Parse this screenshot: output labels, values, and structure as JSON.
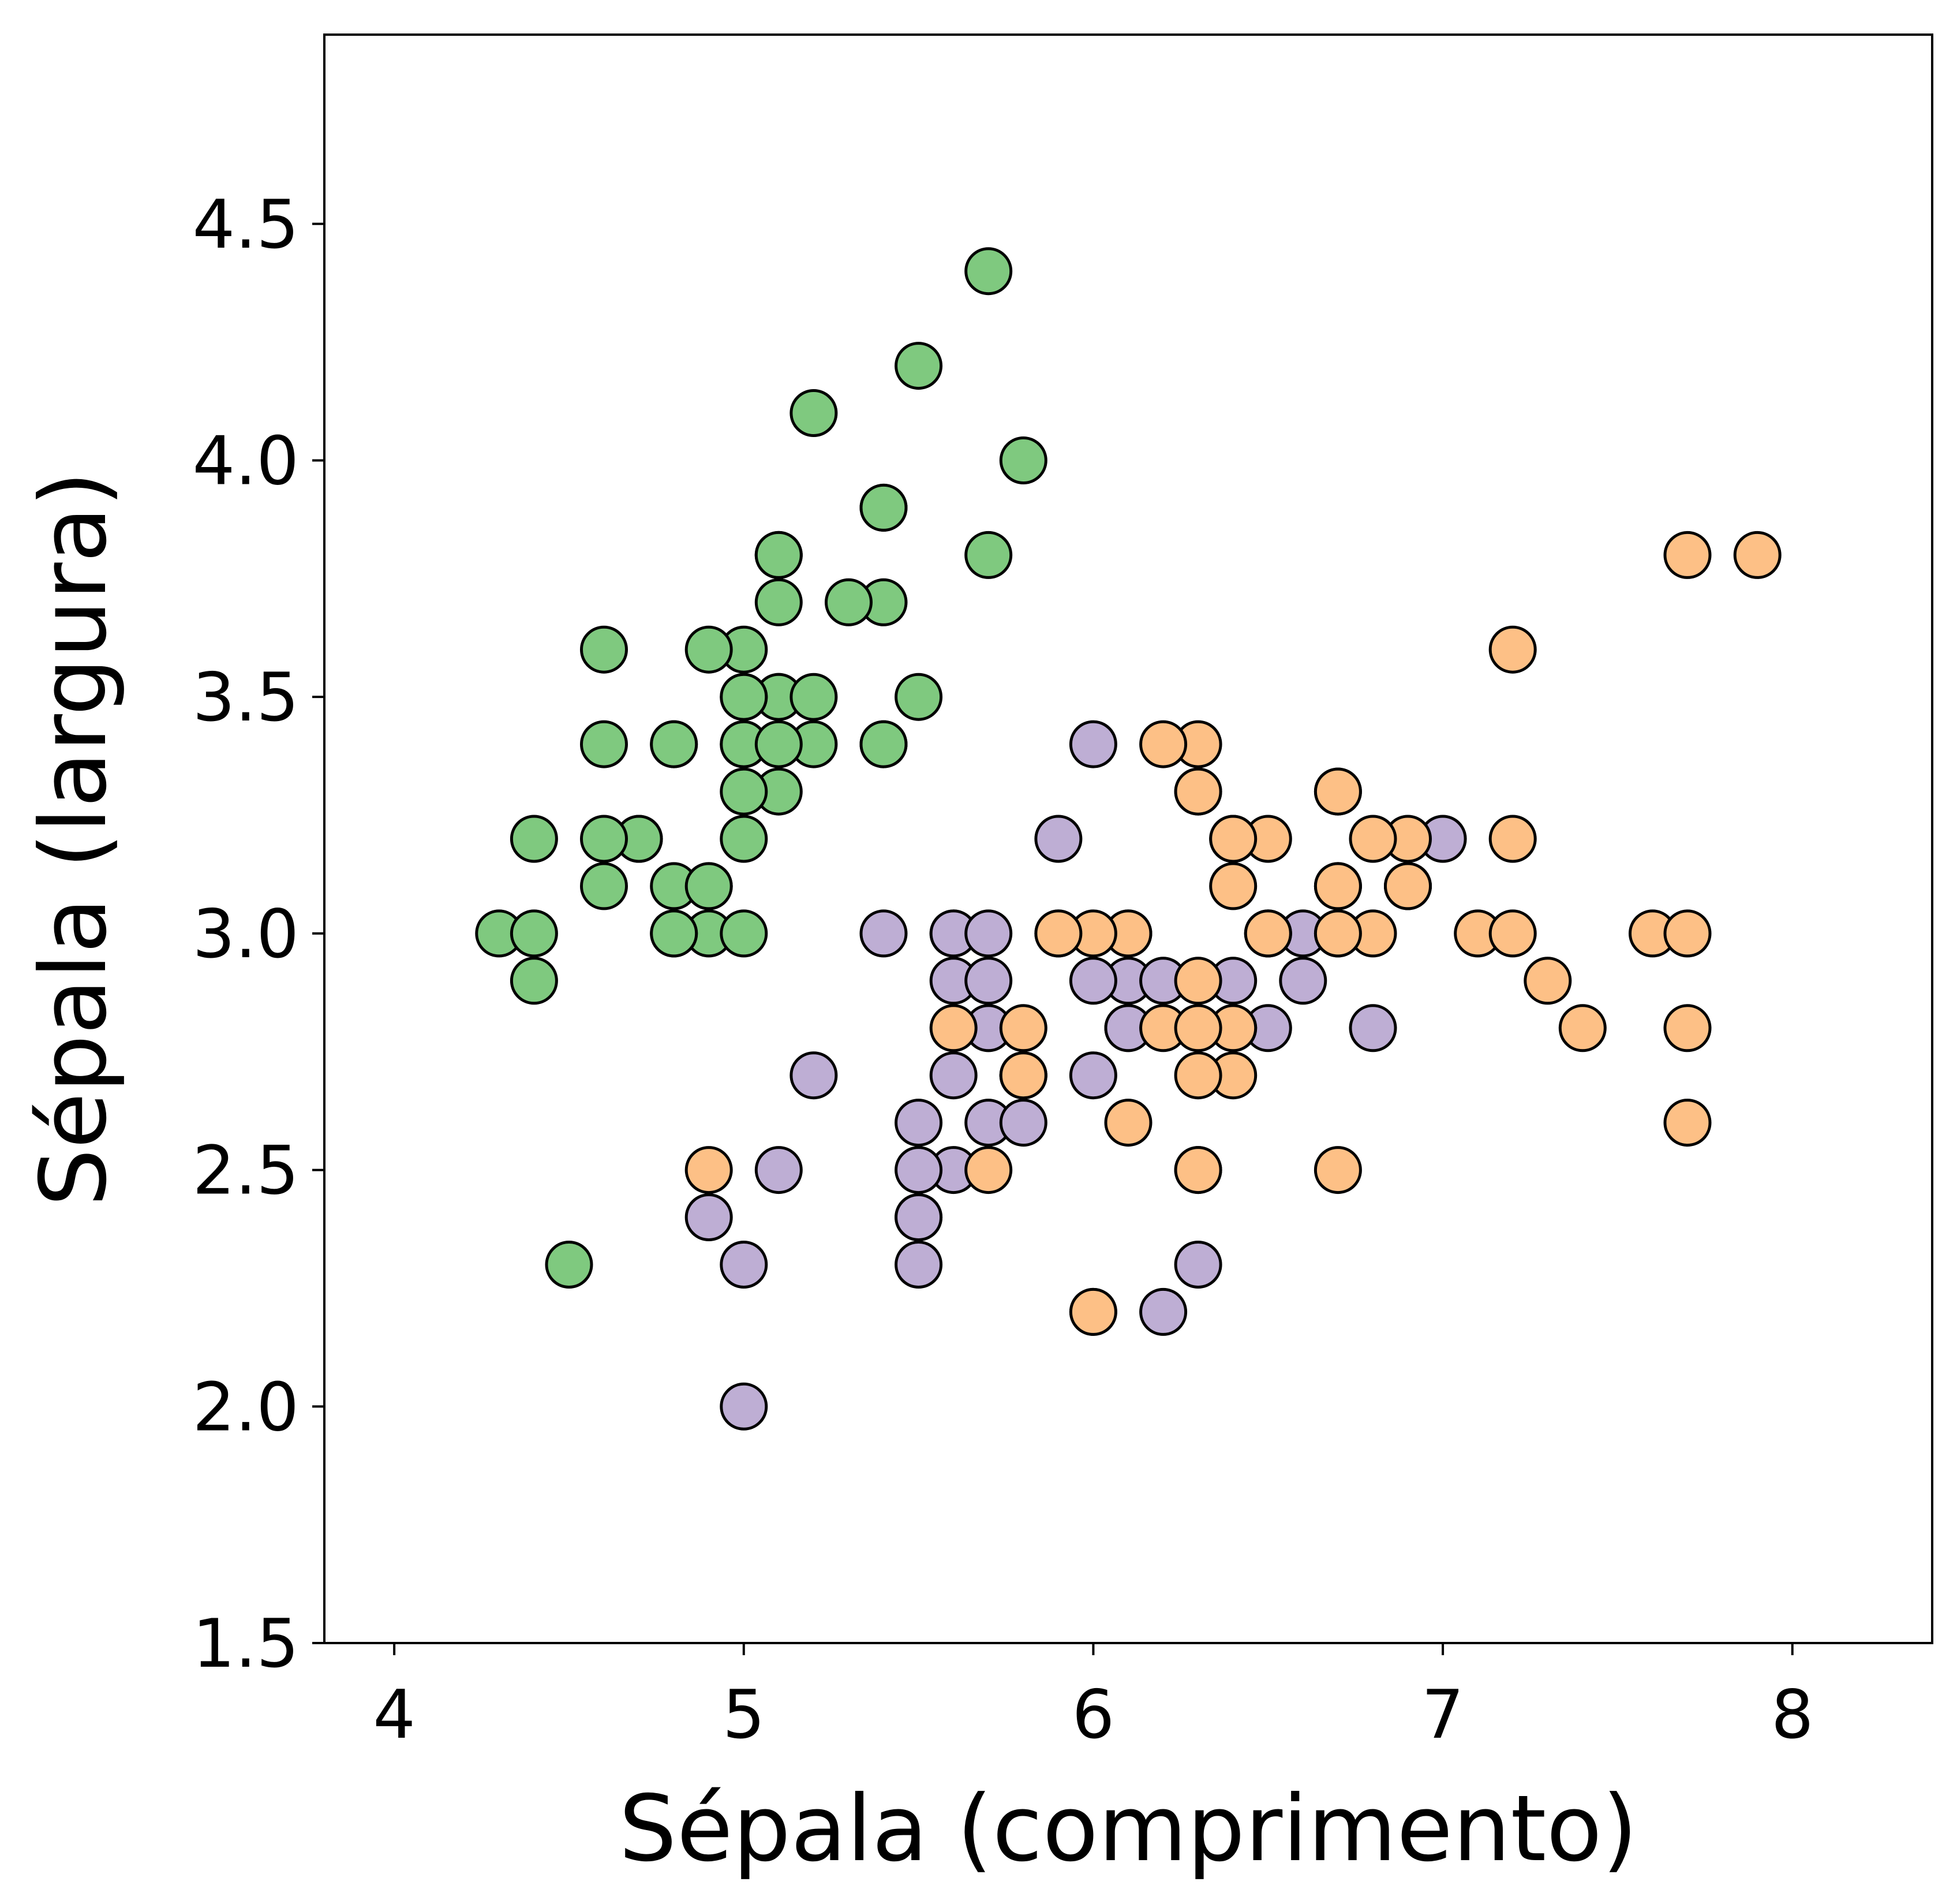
{
  "chart_data": {
    "type": "scatter",
    "title": "",
    "xlabel": "Sépala (comprimento)",
    "ylabel": "Sépala (largura)",
    "xlim": [
      3.8,
      8.4
    ],
    "ylim": [
      1.5,
      4.9
    ],
    "xticks": [
      4,
      5,
      6,
      7,
      8
    ],
    "yticks": [
      1.5,
      2.0,
      2.5,
      3.0,
      3.5,
      4.0,
      4.5
    ],
    "xtick_labels": [
      "4",
      "5",
      "6",
      "7",
      "8"
    ],
    "ytick_labels": [
      "1.5",
      "2.0",
      "2.5",
      "3.0",
      "3.5",
      "4.0",
      "4.5"
    ],
    "grid": false,
    "legend": "none",
    "marker_edge_color": "#000000",
    "series": [
      {
        "color": "#7fc97f",
        "points": [
          [
            5.1,
            3.5
          ],
          [
            4.9,
            3.0
          ],
          [
            4.7,
            3.2
          ],
          [
            4.6,
            3.1
          ],
          [
            5.0,
            3.6
          ],
          [
            5.4,
            3.9
          ],
          [
            4.6,
            3.4
          ],
          [
            5.0,
            3.4
          ],
          [
            4.4,
            2.9
          ],
          [
            4.9,
            3.1
          ],
          [
            5.4,
            3.7
          ],
          [
            4.8,
            3.4
          ],
          [
            4.8,
            3.0
          ],
          [
            4.3,
            3.0
          ],
          [
            5.8,
            4.0
          ],
          [
            5.7,
            4.4
          ],
          [
            5.4,
            3.9
          ],
          [
            5.1,
            3.5
          ],
          [
            5.7,
            3.8
          ],
          [
            5.1,
            3.8
          ],
          [
            5.4,
            3.4
          ],
          [
            5.1,
            3.7
          ],
          [
            4.6,
            3.6
          ],
          [
            5.1,
            3.3
          ],
          [
            4.8,
            3.4
          ],
          [
            5.0,
            3.0
          ],
          [
            5.0,
            3.4
          ],
          [
            5.2,
            3.5
          ],
          [
            5.2,
            3.4
          ],
          [
            4.7,
            3.2
          ],
          [
            4.8,
            3.1
          ],
          [
            5.4,
            3.4
          ],
          [
            5.2,
            4.1
          ],
          [
            5.5,
            4.2
          ],
          [
            4.9,
            3.1
          ],
          [
            5.0,
            3.2
          ],
          [
            5.5,
            3.5
          ],
          [
            4.9,
            3.6
          ],
          [
            4.4,
            3.0
          ],
          [
            5.1,
            3.4
          ],
          [
            5.0,
            3.5
          ],
          [
            4.5,
            2.3
          ],
          [
            4.4,
            3.2
          ],
          [
            5.0,
            3.5
          ],
          [
            5.1,
            3.8
          ],
          [
            4.8,
            3.0
          ],
          [
            5.1,
            3.8
          ],
          [
            4.6,
            3.2
          ],
          [
            5.3,
            3.7
          ],
          [
            5.0,
            3.3
          ]
        ]
      },
      {
        "color": "#beaed4",
        "points": [
          [
            7.0,
            3.2
          ],
          [
            6.4,
            3.2
          ],
          [
            6.9,
            3.1
          ],
          [
            5.5,
            2.3
          ],
          [
            6.5,
            2.8
          ],
          [
            5.7,
            2.8
          ],
          [
            6.3,
            3.3
          ],
          [
            4.9,
            2.4
          ],
          [
            6.6,
            2.9
          ],
          [
            5.2,
            2.7
          ],
          [
            5.0,
            2.0
          ],
          [
            5.9,
            3.0
          ],
          [
            6.0,
            2.2
          ],
          [
            6.1,
            2.9
          ],
          [
            5.6,
            2.9
          ],
          [
            6.7,
            3.1
          ],
          [
            5.6,
            3.0
          ],
          [
            5.8,
            2.7
          ],
          [
            6.2,
            2.2
          ],
          [
            5.6,
            2.5
          ],
          [
            5.9,
            3.2
          ],
          [
            6.1,
            2.8
          ],
          [
            6.3,
            2.5
          ],
          [
            6.1,
            2.8
          ],
          [
            6.4,
            2.9
          ],
          [
            6.6,
            3.0
          ],
          [
            6.8,
            2.8
          ],
          [
            6.7,
            3.0
          ],
          [
            6.0,
            2.9
          ],
          [
            5.7,
            2.6
          ],
          [
            5.5,
            2.4
          ],
          [
            5.5,
            2.4
          ],
          [
            5.8,
            2.7
          ],
          [
            6.0,
            2.7
          ],
          [
            5.4,
            3.0
          ],
          [
            6.0,
            3.4
          ],
          [
            6.7,
            3.1
          ],
          [
            6.3,
            2.3
          ],
          [
            5.6,
            3.0
          ],
          [
            5.5,
            2.5
          ],
          [
            5.5,
            2.6
          ],
          [
            6.1,
            3.0
          ],
          [
            5.8,
            2.6
          ],
          [
            5.0,
            2.3
          ],
          [
            5.6,
            2.7
          ],
          [
            5.7,
            3.0
          ],
          [
            5.7,
            2.9
          ],
          [
            6.2,
            2.9
          ],
          [
            5.1,
            2.5
          ],
          [
            5.7,
            2.8
          ]
        ]
      },
      {
        "color": "#fdc086",
        "points": [
          [
            6.3,
            3.3
          ],
          [
            5.8,
            2.7
          ],
          [
            7.1,
            3.0
          ],
          [
            6.3,
            2.9
          ],
          [
            6.5,
            3.0
          ],
          [
            7.6,
            3.0
          ],
          [
            4.9,
            2.5
          ],
          [
            7.3,
            2.9
          ],
          [
            6.7,
            2.5
          ],
          [
            7.2,
            3.6
          ],
          [
            6.5,
            3.2
          ],
          [
            6.4,
            2.7
          ],
          [
            6.8,
            3.0
          ],
          [
            5.7,
            2.5
          ],
          [
            5.8,
            2.8
          ],
          [
            6.4,
            3.2
          ],
          [
            6.5,
            3.0
          ],
          [
            7.7,
            3.8
          ],
          [
            7.7,
            2.6
          ],
          [
            6.0,
            2.2
          ],
          [
            6.9,
            3.2
          ],
          [
            5.6,
            2.8
          ],
          [
            7.7,
            2.8
          ],
          [
            6.3,
            2.7
          ],
          [
            6.7,
            3.3
          ],
          [
            7.2,
            3.2
          ],
          [
            6.2,
            2.8
          ],
          [
            6.1,
            3.0
          ],
          [
            6.4,
            2.8
          ],
          [
            7.2,
            3.0
          ],
          [
            7.4,
            2.8
          ],
          [
            7.9,
            3.8
          ],
          [
            6.4,
            2.8
          ],
          [
            6.3,
            2.8
          ],
          [
            6.1,
            2.6
          ],
          [
            7.7,
            3.0
          ],
          [
            6.3,
            3.4
          ],
          [
            6.4,
            3.1
          ],
          [
            6.0,
            3.0
          ],
          [
            6.9,
            3.1
          ],
          [
            6.7,
            3.1
          ],
          [
            6.9,
            3.1
          ],
          [
            5.8,
            2.7
          ],
          [
            6.8,
            3.2
          ],
          [
            6.7,
            3.3
          ],
          [
            6.7,
            3.0
          ],
          [
            6.3,
            2.5
          ],
          [
            6.5,
            3.0
          ],
          [
            6.2,
            3.4
          ],
          [
            5.9,
            3.0
          ]
        ]
      }
    ]
  }
}
